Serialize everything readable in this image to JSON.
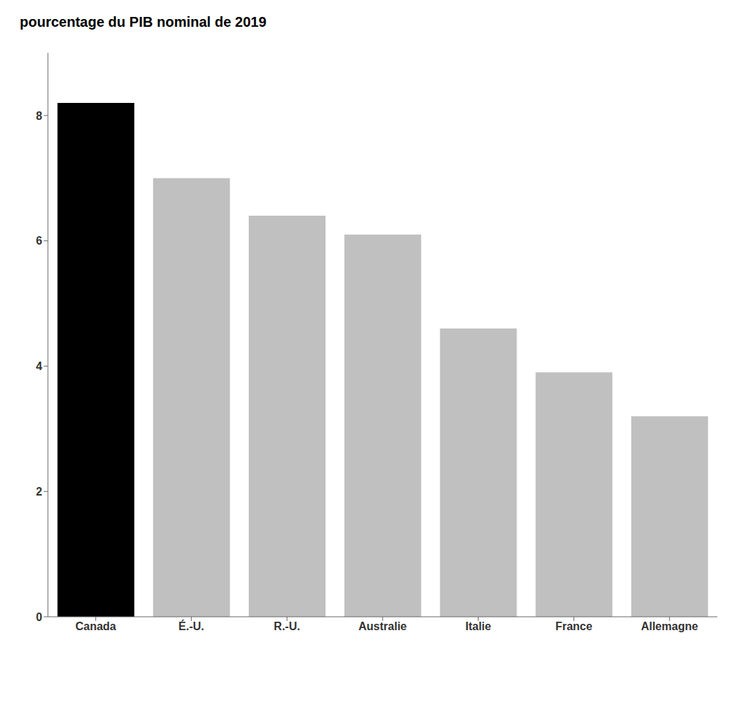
{
  "chart_data": {
    "type": "bar",
    "title": "pourcentage du PIB nominal de 2019",
    "categories": [
      "Canada",
      "É.-U.",
      "R.-U.",
      "Australie",
      "Italie",
      "France",
      "Allemagne"
    ],
    "values": [
      8.2,
      7.0,
      6.4,
      6.1,
      4.6,
      3.9,
      3.2
    ],
    "colors": [
      "#000000",
      "#c0c0c0",
      "#c0c0c0",
      "#c0c0c0",
      "#c0c0c0",
      "#c0c0c0",
      "#c0c0c0"
    ],
    "ylim": [
      0,
      9
    ],
    "yticks": [
      0,
      2,
      4,
      6,
      8
    ],
    "grid": false
  }
}
